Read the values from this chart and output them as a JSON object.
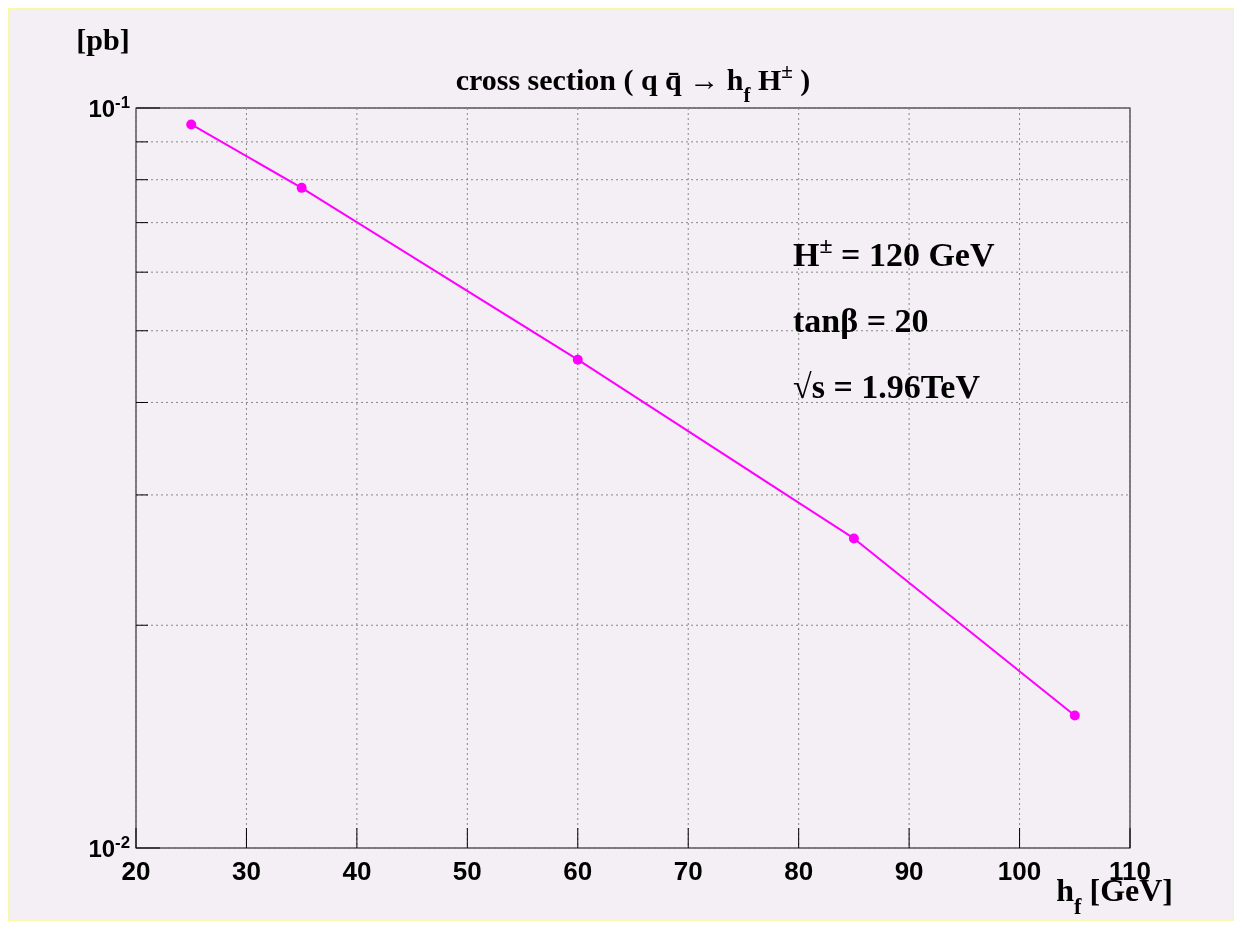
{
  "chart_data": {
    "type": "line",
    "title": "cross section ( q q̄ → h$_{f}$ H$^{±}$ )",
    "xlabel": "h$_{f}$ [GeV]",
    "ylabel": "[pb]",
    "annotations": [
      "H$^{±}$ =  120 GeV",
      "tanβ = 20",
      "√s = 1.96TeV"
    ],
    "x": [
      25,
      35,
      60,
      85,
      105
    ],
    "series": [
      {
        "color": "#ff00ff",
        "values": [
          0.095,
          0.078,
          0.0457,
          0.0262,
          0.0151
        ]
      }
    ],
    "xlim": [
      20,
      110
    ],
    "xticks": [
      20,
      30,
      40,
      50,
      60,
      70,
      80,
      90,
      100,
      110
    ],
    "ylim": [
      0.01,
      0.1
    ],
    "yticks": [
      {
        "value": 0.01,
        "label": "10$^{-2}$"
      },
      {
        "value": 0.02,
        "label": null
      },
      {
        "value": 0.03,
        "label": null
      },
      {
        "value": 0.04,
        "label": null
      },
      {
        "value": 0.05,
        "label": null
      },
      {
        "value": 0.06,
        "label": null
      },
      {
        "value": 0.07,
        "label": null
      },
      {
        "value": 0.08,
        "label": null
      },
      {
        "value": 0.09,
        "label": null
      },
      {
        "value": 0.1,
        "label": "10$^{-1}$"
      }
    ],
    "log": "y",
    "grid": true,
    "marker": "circle",
    "line_style": "solid"
  }
}
